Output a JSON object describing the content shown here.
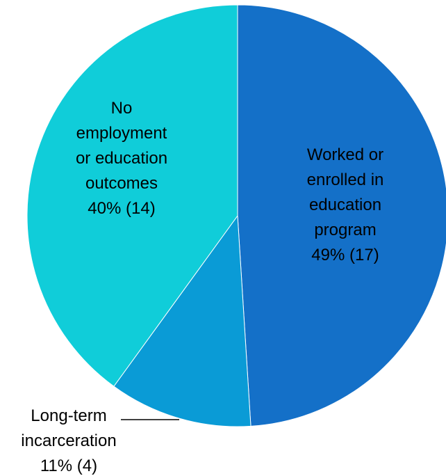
{
  "chart_data": {
    "type": "pie",
    "title": "",
    "slices": [
      {
        "label_lines": [
          "Worked or",
          "enrolled in",
          "education",
          "program",
          "49% (17)"
        ],
        "percent": 49,
        "count": 17,
        "color": "#1470C8"
      },
      {
        "label_lines": [
          "Long-term",
          "incarceration",
          "11% (4)"
        ],
        "percent": 11,
        "count": 4,
        "color": "#0A9BD6"
      },
      {
        "label_lines": [
          "No",
          "employment",
          "or education",
          "outcomes",
          "40% (14)"
        ],
        "percent": 40,
        "count": 14,
        "color": "#10CDD9"
      }
    ],
    "legend": "none",
    "labels": "inside, except 'Long-term incarceration' outside with leader line"
  }
}
